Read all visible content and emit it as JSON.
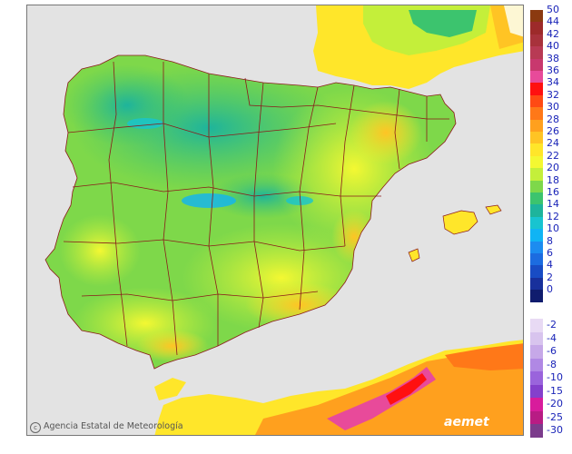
{
  "credit": {
    "symbol": "c",
    "text": "Agencia Estatal de Meteorología"
  },
  "logo": {
    "text": "aemet"
  },
  "colors": {
    "sea": "#e3e3e3",
    "border": "#8b1a1a",
    "france": "#fdf7d4"
  },
  "legend": {
    "positive": [
      {
        "label": "50",
        "color": "#8b3a10"
      },
      {
        "label": "44",
        "color": "#9d2a2a"
      },
      {
        "label": "42",
        "color": "#a8323c"
      },
      {
        "label": "40",
        "color": "#b83a54"
      },
      {
        "label": "38",
        "color": "#c8386e"
      },
      {
        "label": "36",
        "color": "#e84a9a"
      },
      {
        "label": "34",
        "color": "#ff1010"
      },
      {
        "label": "32",
        "color": "#ff4a14"
      },
      {
        "label": "30",
        "color": "#ff7818"
      },
      {
        "label": "28",
        "color": "#ffa01e"
      },
      {
        "label": "26",
        "color": "#ffc424"
      },
      {
        "label": "24",
        "color": "#ffe62a"
      },
      {
        "label": "22",
        "color": "#f4f832"
      },
      {
        "label": "20",
        "color": "#c4ef3a"
      },
      {
        "label": "18",
        "color": "#7ed84a"
      },
      {
        "label": "16",
        "color": "#3cc46e"
      },
      {
        "label": "14",
        "color": "#1eb49c"
      },
      {
        "label": "12",
        "color": "#18c4d0"
      },
      {
        "label": "10",
        "color": "#10b4f4"
      },
      {
        "label": "8",
        "color": "#1c8cf0"
      },
      {
        "label": "6",
        "color": "#1c6ce0"
      },
      {
        "label": "4",
        "color": "#184cc4"
      },
      {
        "label": "2",
        "color": "#18309c"
      },
      {
        "label": "0",
        "color": "#101c6e"
      }
    ],
    "negative": [
      {
        "label": "-2",
        "color": "#e8daf4"
      },
      {
        "label": "-4",
        "color": "#d8c4ee"
      },
      {
        "label": "-6",
        "color": "#c6a8e8"
      },
      {
        "label": "-8",
        "color": "#b088e4"
      },
      {
        "label": "-10",
        "color": "#9a64dc"
      },
      {
        "label": "-15",
        "color": "#8440cc"
      },
      {
        "label": "-20",
        "color": "#d81c9c"
      },
      {
        "label": "-25",
        "color": "#b81c84"
      },
      {
        "label": "-30",
        "color": "#7c3c8c"
      }
    ]
  }
}
